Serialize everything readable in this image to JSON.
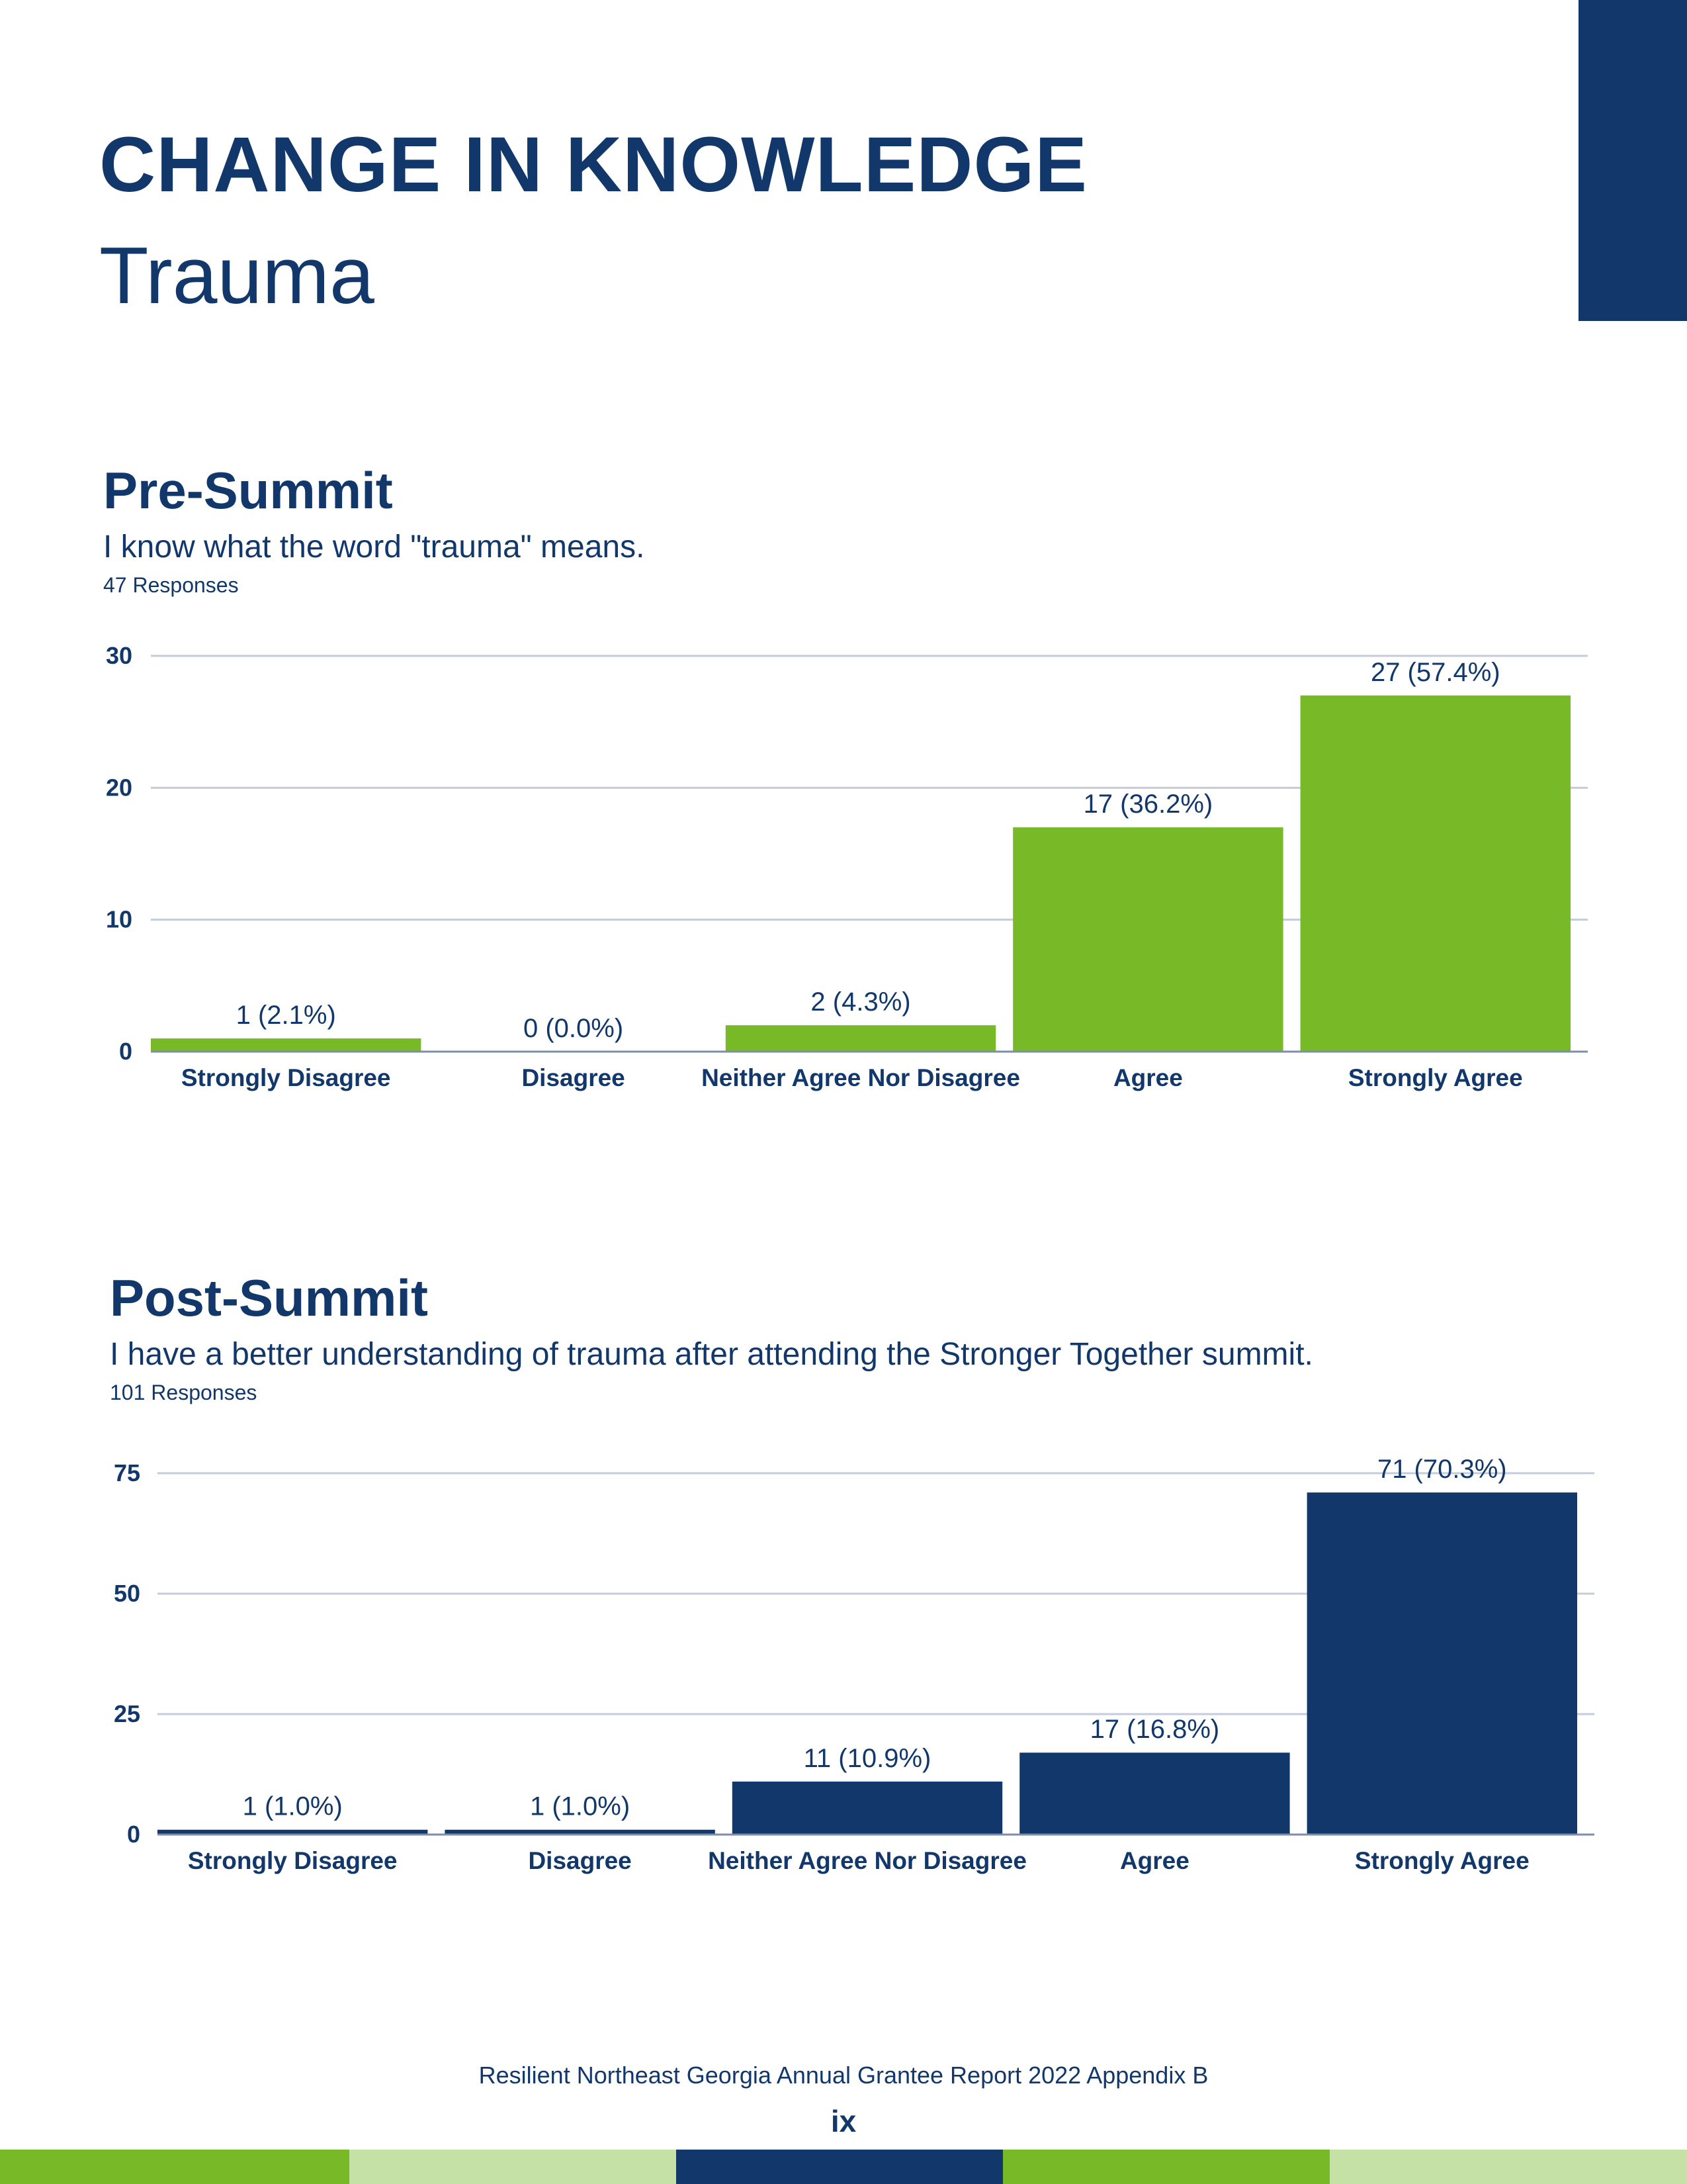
{
  "page": {
    "title": "CHANGE IN KNOWLEDGE",
    "subtitle": "Trauma",
    "footer": "Resilient Northeast Georgia Annual Grantee Report 2022 Appendix B",
    "page_number": "ix"
  },
  "colors": {
    "navy": "#12386b",
    "green": "#77b926",
    "light_green": "#c5e1a5",
    "grid": "#c3ccd8"
  },
  "footer_bar": [
    "#77b926",
    "#c5e1a5",
    "#12386b",
    "#77b926",
    "#c5e1a5"
  ],
  "pre": {
    "heading": "Pre-Summit",
    "question": "I know what the word \"trauma\" means.",
    "responses": "47 Responses"
  },
  "post": {
    "heading": "Post-Summit",
    "question": "I have a better understanding of trauma after attending the Stronger Together summit.",
    "responses": "101 Responses"
  },
  "chart_data": [
    {
      "type": "bar",
      "title": "",
      "categories": [
        "Strongly Disagree",
        "Disagree",
        "Neither Agree Nor Disagree",
        "Agree",
        "Strongly Agree"
      ],
      "values": [
        1,
        0,
        2,
        17,
        27
      ],
      "data_labels": [
        "1 (2.1%)",
        "0 (0.0%)",
        "2 (4.3%)",
        "17 (36.2%)",
        "27 (57.4%)"
      ],
      "yticks": [
        0,
        10,
        20,
        30
      ],
      "ylim": [
        0,
        30
      ],
      "color": "#77b926",
      "grid": true,
      "xlabel": "",
      "ylabel": ""
    },
    {
      "type": "bar",
      "title": "",
      "categories": [
        "Strongly Disagree",
        "Disagree",
        "Neither Agree Nor Disagree",
        "Agree",
        "Strongly Agree"
      ],
      "values": [
        1,
        1,
        11,
        17,
        71
      ],
      "data_labels": [
        "1 (1.0%)",
        "1 (1.0%)",
        "11 (10.9%)",
        "17 (16.8%)",
        "71 (70.3%)"
      ],
      "yticks": [
        0,
        25,
        50,
        75
      ],
      "ylim": [
        0,
        75
      ],
      "color": "#12386b",
      "grid": true,
      "xlabel": "",
      "ylabel": ""
    }
  ]
}
